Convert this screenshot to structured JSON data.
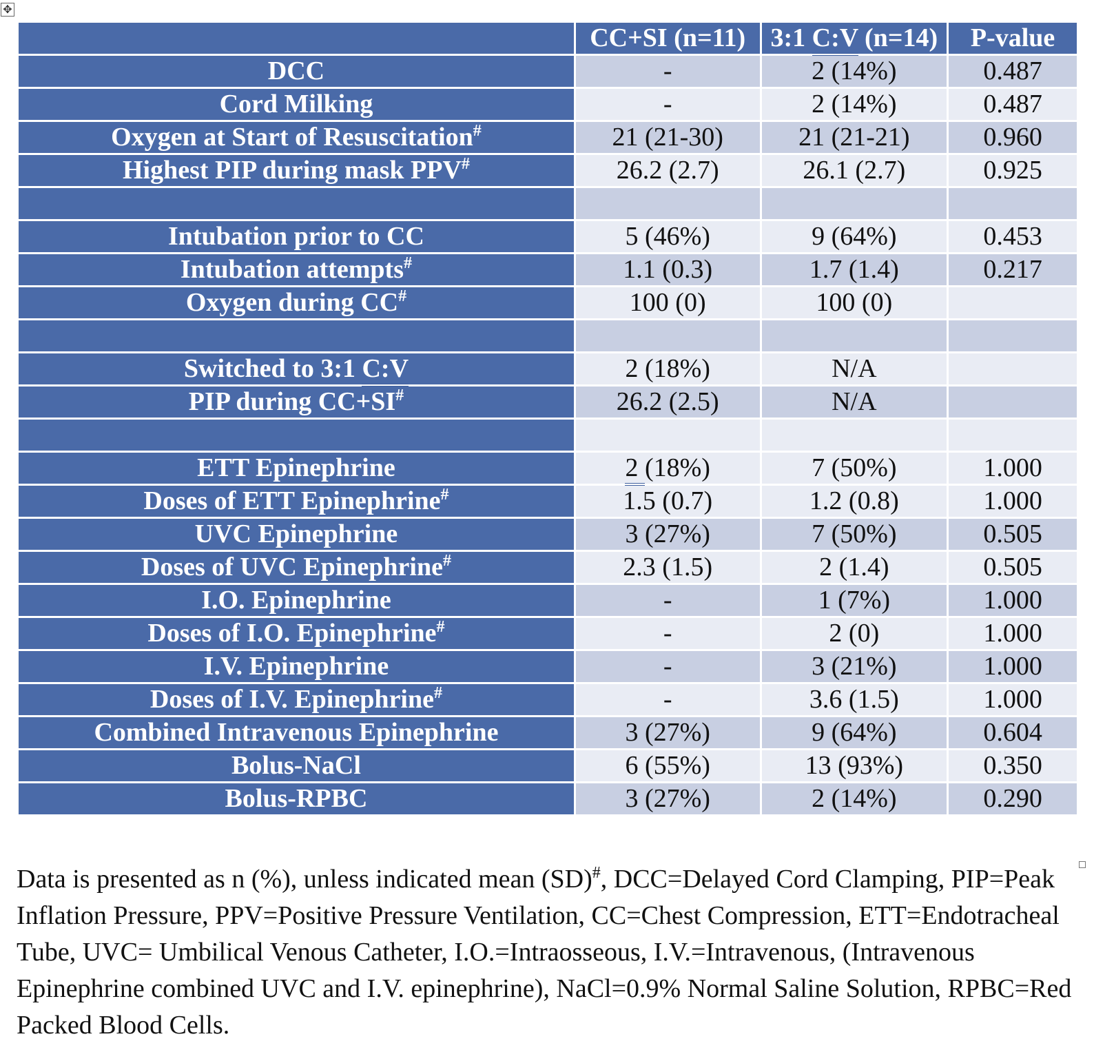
{
  "header": {
    "blank": "",
    "col1": "CC+SI (n=11)",
    "col2_prefix": "3:1 ",
    "col2_cv": "C:V",
    "col2_suffix": " (n=14)",
    "col3": "P-value"
  },
  "rows": [
    {
      "label": "DCC",
      "sup": "",
      "c1": "-",
      "c2": "2 (14%)",
      "p": "0.487"
    },
    {
      "label": "Cord Milking",
      "sup": "",
      "c1": "-",
      "c2": "2 (14%)",
      "p": "0.487"
    },
    {
      "label": "Oxygen at Start of Resuscitation",
      "sup": "#",
      "c1": "21 (21-30)",
      "c2": "21 (21-21)",
      "p": "0.960"
    },
    {
      "label": "Highest PIP during mask PPV",
      "sup": "#",
      "c1": "26.2 (2.7)",
      "c2": "26.1 (2.7)",
      "p": "0.925"
    },
    {
      "label": "",
      "sup": "",
      "c1": "",
      "c2": "",
      "p": ""
    },
    {
      "label": "Intubation prior to CC",
      "sup": "",
      "c1": "5 (46%)",
      "c2": "9 (64%)",
      "p": "0.453"
    },
    {
      "label": "Intubation attempts",
      "sup": "#",
      "c1": "1.1 (0.3)",
      "c2": "1.7 (1.4)",
      "p": "0.217"
    },
    {
      "label": "Oxygen during CC",
      "sup": "#",
      "c1": "100 (0)",
      "c2": "100 (0)",
      "p": ""
    },
    {
      "label": "",
      "sup": "",
      "c1": "",
      "c2": "",
      "p": ""
    },
    {
      "label_prefix": "Switched to 3:1 ",
      "label_cv": "C:V",
      "sup": "",
      "c1": "2 (18%)",
      "c2": "N/A",
      "p": ""
    },
    {
      "label": "PIP during CC+SI",
      "sup": "#",
      "c1": "26.2 (2.5)",
      "c2": "N/A",
      "p": ""
    },
    {
      "label": "",
      "sup": "",
      "c1": "",
      "c2": "",
      "p": ""
    },
    {
      "label": "ETT Epinephrine",
      "sup": "",
      "c1_u": "2 ",
      "c1_rest": "(18%)",
      "c2": "7 (50%)",
      "p": "1.000"
    },
    {
      "label": "Doses of ETT Epinephrine",
      "sup": "#",
      "c1": "1.5 (0.7)",
      "c2": "1.2 (0.8)",
      "p": "1.000"
    },
    {
      "label": "UVC Epinephrine",
      "sup": "",
      "c1": "3 (27%)",
      "c2": "7 (50%)",
      "p": "0.505"
    },
    {
      "label": "Doses of UVC Epinephrine",
      "sup": "#",
      "c1": "2.3 (1.5)",
      "c2": "2 (1.4)",
      "p": "0.505"
    },
    {
      "label": "I.O. Epinephrine",
      "sup": "",
      "c1": "-",
      "c2": "1 (7%)",
      "p": "1.000"
    },
    {
      "label": "Doses of I.O. Epinephrine",
      "sup": "#",
      "c1": "-",
      "c2": "2 (0)",
      "p": "1.000"
    },
    {
      "label": "I.V. Epinephrine",
      "sup": "",
      "c1": "-",
      "c2": "3 (21%)",
      "p": "1.000"
    },
    {
      "label": "Doses of I.V. Epinephrine",
      "sup": "#",
      "c1": "-",
      "c2": "3.6 (1.5)",
      "p": "1.000"
    },
    {
      "label": "Combined Intravenous Epinephrine",
      "sup": "",
      "c1": "3 (27%)",
      "c2": "9 (64%)",
      "p": "0.604"
    },
    {
      "label": "Bolus-NaCl",
      "sup": "",
      "c1": "6 (55%)",
      "c2": "13 (93%)",
      "p": "0.350"
    },
    {
      "label": "Bolus-RPBC",
      "sup": "",
      "c1": "3 (27%)",
      "c2": "2 (14%)",
      "p": "0.290"
    }
  ],
  "footnote": {
    "part1": "Data is presented as n (%), unless indicated mean (SD)",
    "sup": "#",
    "part2": ", DCC=Delayed Cord Clamping, PIP=Peak Inflation Pressure, PPV=Positive Pressure Ventilation, CC=Chest Compression, ETT=Endotracheal Tube, UVC= Umbilical Venous Catheter, I.O.=Intraosseous, I.V.=Intravenous, (Intravenous Epinephrine combined UVC and I.V. epinephrine), NaCl=0.9% Normal Saline Solution, RPBC=Red Packed Blood Cells."
  },
  "icons": {
    "table_move_handle": "move-arrows-icon",
    "table_move_glyph": "✥"
  },
  "colors": {
    "label_fill": "#4a6aa8",
    "band_dark": "#c8cfe2",
    "band_light": "#e9ecf4"
  }
}
